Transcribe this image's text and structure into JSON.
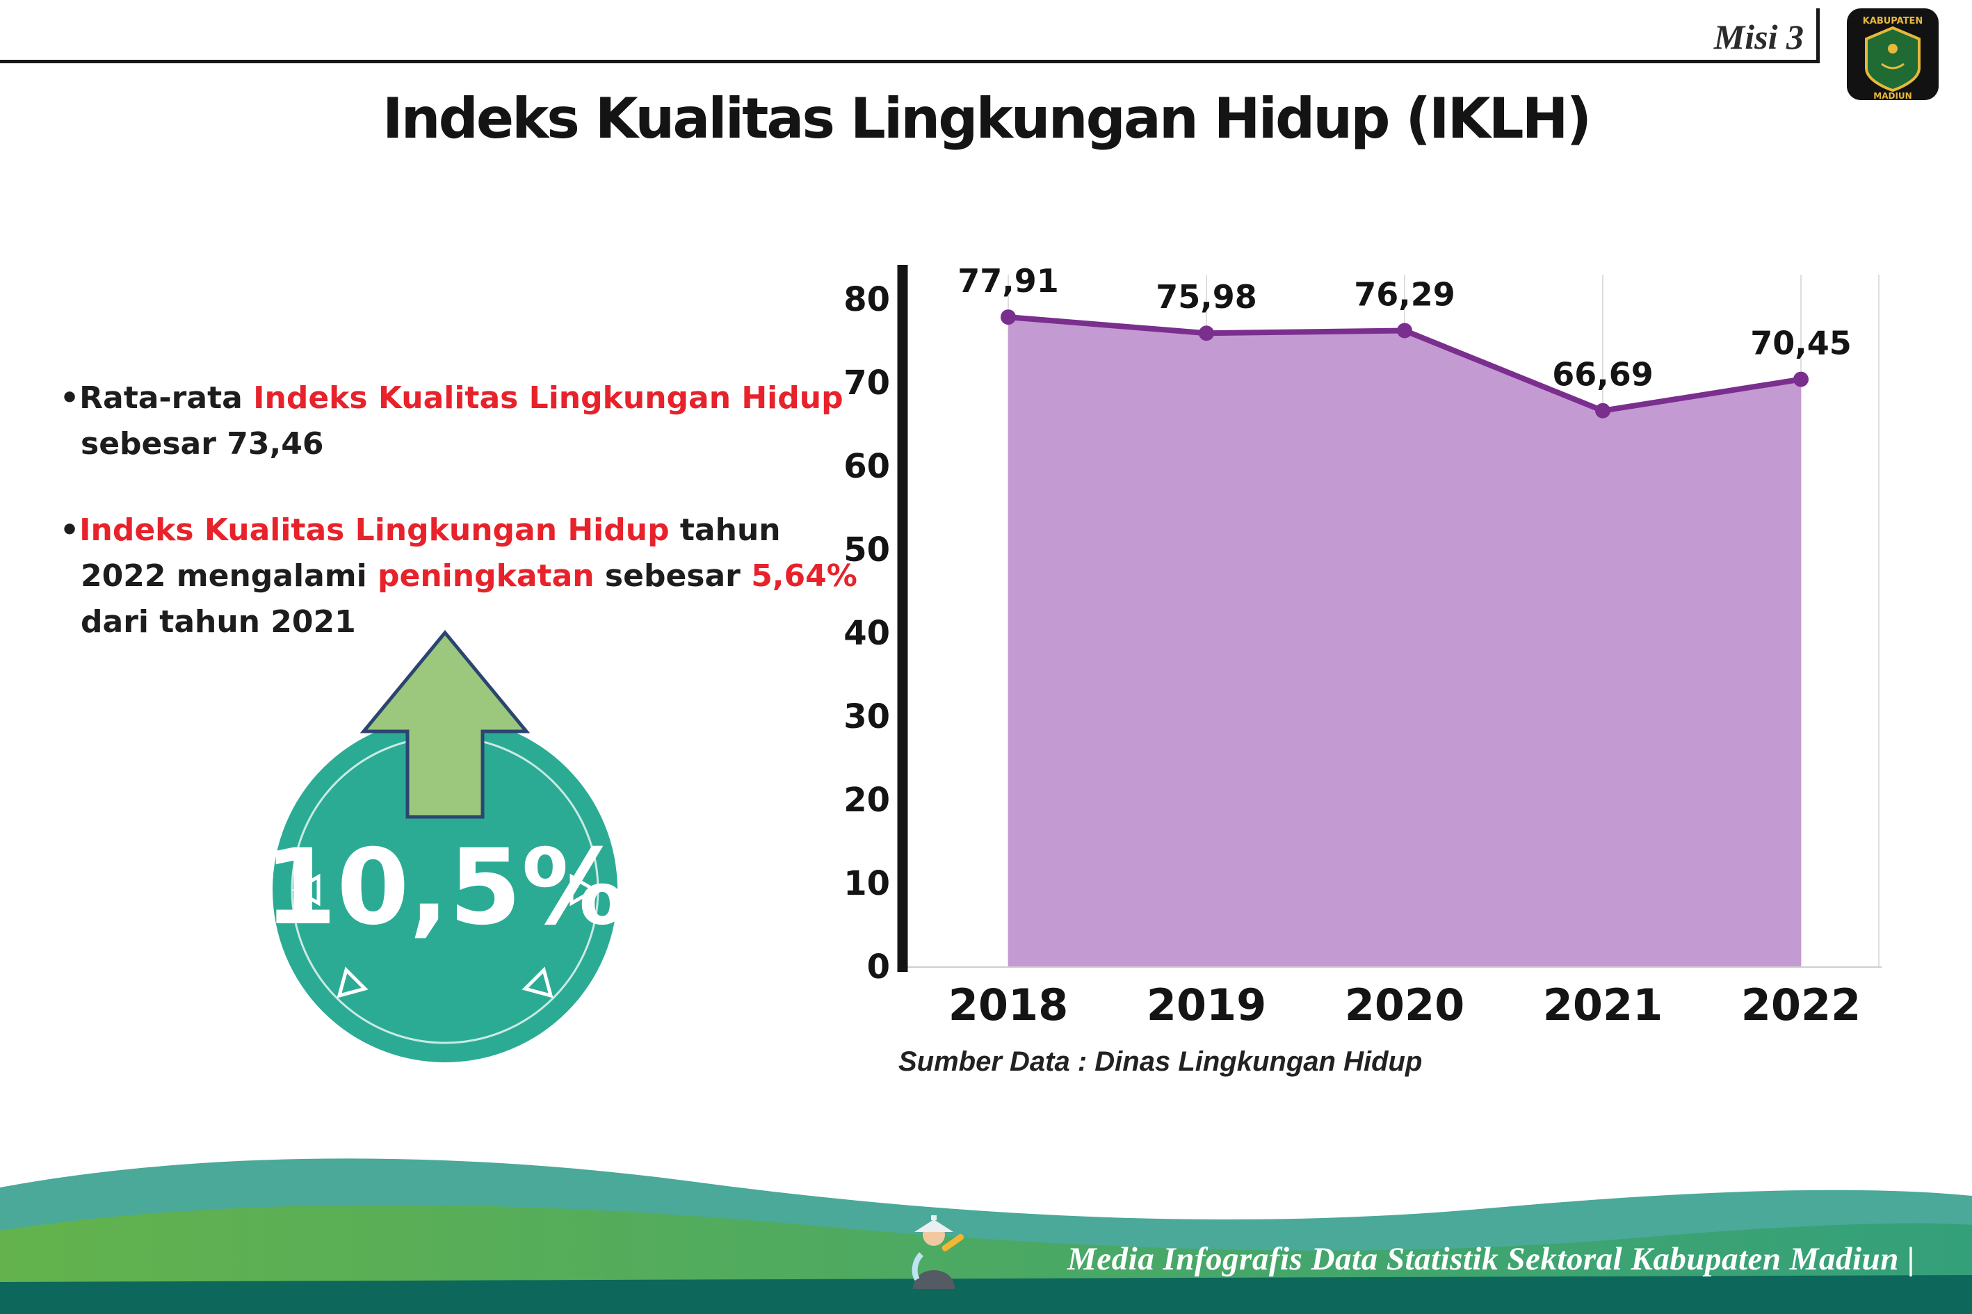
{
  "header": {
    "misi_label": "Misi 3",
    "title": "Indeks Kualitas Lingkungan Hidup (IKLH)"
  },
  "logo": {
    "line1": "KABUPATEN",
    "line2": "MADIUN"
  },
  "bullets": {
    "marker": "•",
    "b1": [
      {
        "t": "Rata-rata "
      },
      {
        "t": "Indeks Kualitas Lingkungan Hidup"
      },
      {
        "t": " sebesar 73,46"
      }
    ],
    "b2": [
      {
        "t": "Indeks Kualitas Lingkungan Hidup"
      },
      {
        "t": " tahun 2022 mengalami "
      },
      {
        "t": "peningkatan"
      },
      {
        "t": " sebesar "
      },
      {
        "t": "5,64%"
      },
      {
        "t": " dari tahun 2021"
      }
    ]
  },
  "badge": {
    "value": "10,5%",
    "circle_color": "#2bab94",
    "arrow_color": "#9cc87e"
  },
  "chart_data": {
    "type": "area",
    "title": "",
    "categories": [
      "2018",
      "2019",
      "2020",
      "2021",
      "2022"
    ],
    "values": [
      77.91,
      75.98,
      76.29,
      66.69,
      70.45
    ],
    "point_labels": [
      "77,91",
      "75,98",
      "76,29",
      "66,69",
      "70,45"
    ],
    "yticks": [
      0,
      10,
      20,
      30,
      40,
      50,
      60,
      70,
      80
    ],
    "ylim": [
      0,
      80
    ],
    "grid": "vertical",
    "legend": "none",
    "line_color": "#7a2f8e",
    "fill_color": "#c49ad2",
    "source_label": "Sumber Data : Dinas Lingkungan Hidup"
  },
  "footer": {
    "text": "Media Infografis Data Statistik Sektoral Kabupaten Madiun |"
  }
}
